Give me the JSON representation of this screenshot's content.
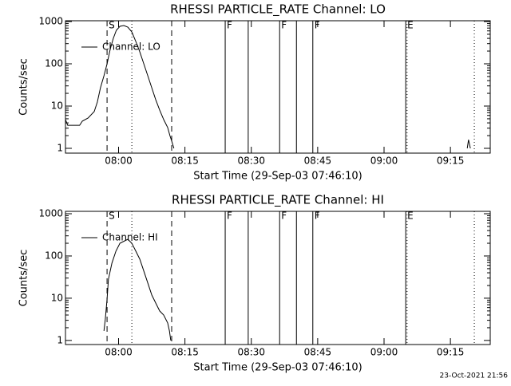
{
  "chart_data": [
    {
      "type": "line",
      "title": "RHESSI PARTICLE_RATE Channel: LO",
      "xlabel": "Start Time (29-Sep-03 07:46:10)",
      "ylabel": "Counts/sec",
      "log_y": true,
      "legend": "upper left",
      "xlim": [
        468,
        564
      ],
      "ylim": [
        0.77,
        1044
      ],
      "xticks": [
        {
          "value": 480,
          "label": "08:00"
        },
        {
          "value": 495,
          "label": "08:15"
        },
        {
          "value": 510,
          "label": "08:30"
        },
        {
          "value": 525,
          "label": "08:45"
        },
        {
          "value": 540,
          "label": "09:00"
        },
        {
          "value": 555,
          "label": "09:15"
        }
      ],
      "yticks": [
        1,
        10,
        100,
        1000
      ],
      "flags": [
        {
          "x": 477.4,
          "style": "dashed",
          "label": "S"
        },
        {
          "x": 483.0,
          "style": "dotted"
        },
        {
          "x": 492.0,
          "style": "dashed"
        },
        {
          "x": 504.1,
          "style": "solid",
          "label": "F"
        },
        {
          "x": 509.3,
          "style": "solid"
        },
        {
          "x": 516.4,
          "style": "solid",
          "label": "F"
        },
        {
          "x": 520.2,
          "style": "solid"
        },
        {
          "x": 523.9,
          "style": "solid",
          "label": "F"
        },
        {
          "x": 544.9,
          "style": "solid",
          "label": "E"
        },
        {
          "x": 545.2,
          "style": "dotted"
        },
        {
          "x": 560.4,
          "style": "dotted"
        }
      ],
      "series": [
        {
          "name": "Channel: LO",
          "color": "#000000",
          "x": [
            468.0,
            468.5,
            471.2,
            471.8,
            473.1,
            474.5,
            475.2,
            475.9,
            476.7,
            477.4,
            478.1,
            478.8,
            479.5,
            480.3,
            481.2,
            482.1,
            483.0,
            483.9,
            484.8,
            485.7,
            486.6,
            487.5,
            488.4,
            489.3,
            490.2,
            491.1,
            491.6,
            492.0,
            492.5,
            500.0,
            558.8,
            559.1,
            559.5
          ],
          "values": [
            4.8,
            3.5,
            3.5,
            4.4,
            5.2,
            7.4,
            12.4,
            27,
            52,
            100,
            219,
            400,
            620,
            770,
            805,
            738,
            569,
            338,
            191,
            100,
            52,
            27,
            14.2,
            8.0,
            4.8,
            3.1,
            2.0,
            1.5,
            1.0,
            null,
            1.0,
            1.6,
            1.0
          ]
        }
      ]
    },
    {
      "type": "line",
      "title": "RHESSI PARTICLE_RATE Channel: HI",
      "xlabel": "Start Time (29-Sep-03 07:46:10)",
      "ylabel": "Counts/sec",
      "log_y": true,
      "legend": "upper left",
      "xlim": [
        468,
        564
      ],
      "ylim": [
        0.8,
        1140
      ],
      "xticks": [
        {
          "value": 480,
          "label": "08:00"
        },
        {
          "value": 495,
          "label": "08:15"
        },
        {
          "value": 510,
          "label": "08:30"
        },
        {
          "value": 525,
          "label": "08:45"
        },
        {
          "value": 540,
          "label": "09:00"
        },
        {
          "value": 555,
          "label": "09:15"
        }
      ],
      "yticks": [
        1,
        10,
        100,
        1000
      ],
      "flags": [
        {
          "x": 477.4,
          "style": "dashed",
          "label": "S"
        },
        {
          "x": 483.0,
          "style": "dotted"
        },
        {
          "x": 492.0,
          "style": "dashed"
        },
        {
          "x": 504.1,
          "style": "solid",
          "label": "F"
        },
        {
          "x": 509.3,
          "style": "solid"
        },
        {
          "x": 516.4,
          "style": "solid",
          "label": "F"
        },
        {
          "x": 520.2,
          "style": "solid"
        },
        {
          "x": 523.9,
          "style": "solid",
          "label": "F"
        },
        {
          "x": 544.9,
          "style": "solid",
          "label": "E"
        },
        {
          "x": 545.2,
          "style": "dotted"
        },
        {
          "x": 560.4,
          "style": "dotted"
        }
      ],
      "series": [
        {
          "name": "Channel: HI",
          "color": "#000000",
          "x": [
            476.7,
            477.0,
            477.4,
            477.7,
            478.5,
            479.4,
            480.3,
            482.1,
            483.0,
            483.9,
            484.8,
            485.7,
            486.6,
            487.5,
            488.4,
            489.3,
            490.2,
            491.1,
            491.5,
            491.8
          ],
          "values": [
            1.68,
            3.2,
            9.6,
            28,
            68,
            130,
            200,
            249,
            200,
            130,
            84,
            44,
            23,
            11.9,
            7.7,
            5.0,
            4.0,
            2.6,
            1.68,
            1.0
          ]
        }
      ]
    }
  ],
  "footer": "23-Oct-2021 21:56"
}
